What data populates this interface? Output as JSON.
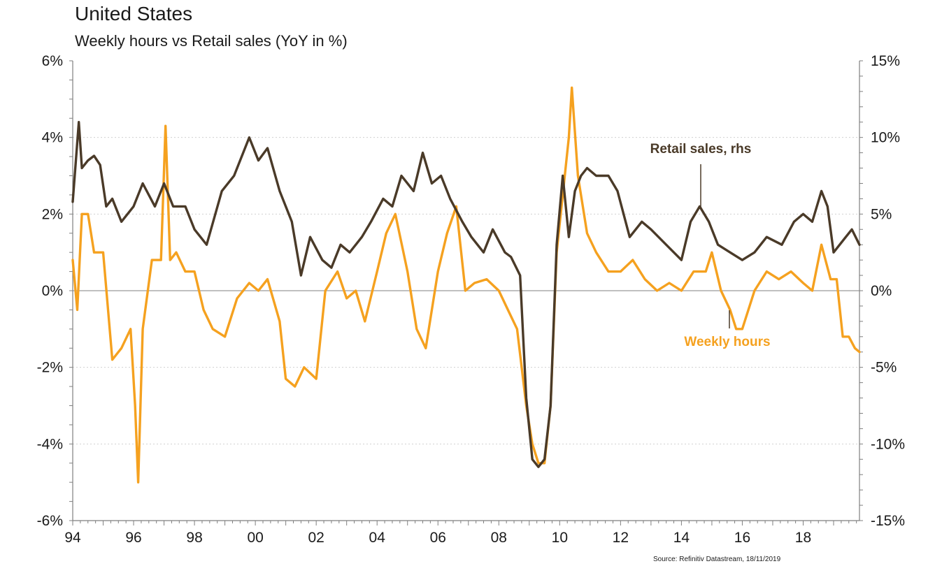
{
  "title": "United States",
  "subtitle": "Weekly hours vs Retail sales (YoY in %)",
  "source": "Source: Refinitiv Datastream, 18/11/2019",
  "colors": {
    "retail": "#4a3a28",
    "hours": "#f5a11f",
    "grid": "#d0d0d0",
    "axis": "#7f7f7f"
  },
  "chart_data": {
    "type": "line",
    "x_tick_labels": [
      "94",
      "96",
      "98",
      "00",
      "02",
      "04",
      "06",
      "08",
      "10",
      "12",
      "14",
      "16",
      "18"
    ],
    "x_range": [
      1994.0,
      2019.85
    ],
    "y_left": {
      "range": [
        -6,
        6
      ],
      "ticks": [
        6,
        4,
        2,
        0,
        -2,
        -4,
        -6
      ],
      "tick_labels": [
        "6%",
        "4%",
        "2%",
        "0%",
        "-2%",
        "-4%",
        "-6%"
      ]
    },
    "y_right": {
      "range": [
        -15,
        15
      ],
      "ticks": [
        15,
        10,
        5,
        0,
        -5,
        -10,
        -15
      ],
      "tick_labels": [
        "15%",
        "10%",
        "5%",
        "0%",
        "-5%",
        "-10%",
        "-15%"
      ]
    },
    "grid": "horizontal",
    "annotations": [
      {
        "text": "Retail sales, rhs",
        "series": "Retail sales"
      },
      {
        "text": "Weekly hours",
        "series": "Weekly hours"
      }
    ],
    "series": [
      {
        "name": "Retail sales",
        "axis": "right",
        "x": [
          1994.0,
          1994.2,
          1994.3,
          1994.5,
          1994.7,
          1994.9,
          1995.1,
          1995.3,
          1995.6,
          1996.0,
          1996.3,
          1996.7,
          1997.0,
          1997.3,
          1997.7,
          1998.0,
          1998.4,
          1998.9,
          1999.3,
          1999.8,
          2000.1,
          2000.4,
          2000.8,
          2001.2,
          2001.5,
          2001.8,
          2002.2,
          2002.5,
          2002.8,
          2003.1,
          2003.5,
          2003.8,
          2004.2,
          2004.5,
          2004.8,
          2005.2,
          2005.5,
          2005.8,
          2006.1,
          2006.4,
          2006.8,
          2007.1,
          2007.5,
          2007.8,
          2008.2,
          2008.4,
          2008.7,
          2008.9,
          2009.1,
          2009.3,
          2009.5,
          2009.7,
          2009.9,
          2010.1,
          2010.3,
          2010.5,
          2010.7,
          2010.9,
          2011.2,
          2011.6,
          2011.9,
          2012.3,
          2012.7,
          2013.0,
          2013.5,
          2014.0,
          2014.3,
          2014.6,
          2014.9,
          2015.2,
          2015.6,
          2016.0,
          2016.4,
          2016.8,
          2017.3,
          2017.7,
          2018.0,
          2018.3,
          2018.6,
          2018.8,
          2019.0,
          2019.2,
          2019.4,
          2019.6,
          2019.85
        ],
        "values": [
          5.8,
          11.0,
          8.0,
          8.5,
          8.8,
          8.2,
          5.5,
          6.0,
          4.5,
          5.5,
          7.0,
          5.5,
          7.0,
          5.5,
          5.5,
          4.0,
          3.0,
          6.5,
          7.5,
          10.0,
          8.5,
          9.3,
          6.5,
          4.5,
          1.0,
          3.5,
          2.0,
          1.5,
          3.0,
          2.5,
          3.5,
          4.5,
          6.0,
          5.5,
          7.5,
          6.5,
          9.0,
          7.0,
          7.5,
          6.0,
          4.5,
          3.5,
          2.5,
          4.0,
          2.5,
          2.2,
          1.0,
          -7.0,
          -11.0,
          -11.5,
          -11.0,
          -7.5,
          3.0,
          7.5,
          3.5,
          6.5,
          7.5,
          8.0,
          7.5,
          7.5,
          6.5,
          3.5,
          4.5,
          4.0,
          3.0,
          2.0,
          4.5,
          5.5,
          4.5,
          3.0,
          2.5,
          2.0,
          2.5,
          3.5,
          3.0,
          4.5,
          5.0,
          4.5,
          6.5,
          5.5,
          2.5,
          3.0,
          3.5,
          4.0,
          3.0
        ]
      },
      {
        "name": "Weekly hours",
        "axis": "left",
        "x": [
          1994.0,
          1994.15,
          1994.3,
          1994.5,
          1994.7,
          1995.0,
          1995.3,
          1995.6,
          1995.9,
          1996.05,
          1996.15,
          1996.3,
          1996.6,
          1996.9,
          1997.05,
          1997.2,
          1997.4,
          1997.7,
          1998.0,
          1998.3,
          1998.6,
          1999.0,
          1999.4,
          1999.8,
          2000.1,
          2000.4,
          2000.8,
          2001.0,
          2001.3,
          2001.6,
          2002.0,
          2002.3,
          2002.7,
          2003.0,
          2003.3,
          2003.6,
          2004.0,
          2004.3,
          2004.6,
          2005.0,
          2005.3,
          2005.6,
          2006.0,
          2006.3,
          2006.6,
          2006.9,
          2007.2,
          2007.6,
          2008.0,
          2008.3,
          2008.6,
          2008.9,
          2009.1,
          2009.3,
          2009.5,
          2009.7,
          2009.9,
          2010.1,
          2010.3,
          2010.4,
          2010.6,
          2010.9,
          2011.2,
          2011.6,
          2012.0,
          2012.4,
          2012.8,
          2013.2,
          2013.6,
          2014.0,
          2014.4,
          2014.8,
          2015.0,
          2015.3,
          2015.6,
          2015.8,
          2016.0,
          2016.4,
          2016.8,
          2017.2,
          2017.6,
          2018.0,
          2018.3,
          2018.6,
          2018.9,
          2019.1,
          2019.3,
          2019.5,
          2019.7,
          2019.85
        ],
        "values": [
          0.8,
          -0.5,
          2.0,
          2.0,
          1.0,
          1.0,
          -1.8,
          -1.5,
          -1.0,
          -3.0,
          -5.0,
          -1.0,
          0.8,
          0.8,
          4.3,
          0.8,
          1.0,
          0.5,
          0.5,
          -0.5,
          -1.0,
          -1.2,
          -0.2,
          0.2,
          0.0,
          0.3,
          -0.8,
          -2.3,
          -2.5,
          -2.0,
          -2.3,
          0.0,
          0.5,
          -0.2,
          0.0,
          -0.8,
          0.5,
          1.5,
          2.0,
          0.5,
          -1.0,
          -1.5,
          0.5,
          1.5,
          2.2,
          0.0,
          0.2,
          0.3,
          0.0,
          -0.5,
          -1.0,
          -3.0,
          -4.0,
          -4.5,
          -4.5,
          -3.0,
          1.0,
          2.5,
          4.0,
          5.3,
          3.0,
          1.5,
          1.0,
          0.5,
          0.5,
          0.8,
          0.3,
          0.0,
          0.2,
          0.0,
          0.5,
          0.5,
          1.0,
          0.0,
          -0.5,
          -1.0,
          -1.0,
          0.0,
          0.5,
          0.3,
          0.5,
          0.2,
          0.0,
          1.2,
          0.3,
          0.3,
          -1.2,
          -1.2,
          -1.5,
          -1.6
        ]
      }
    ]
  }
}
